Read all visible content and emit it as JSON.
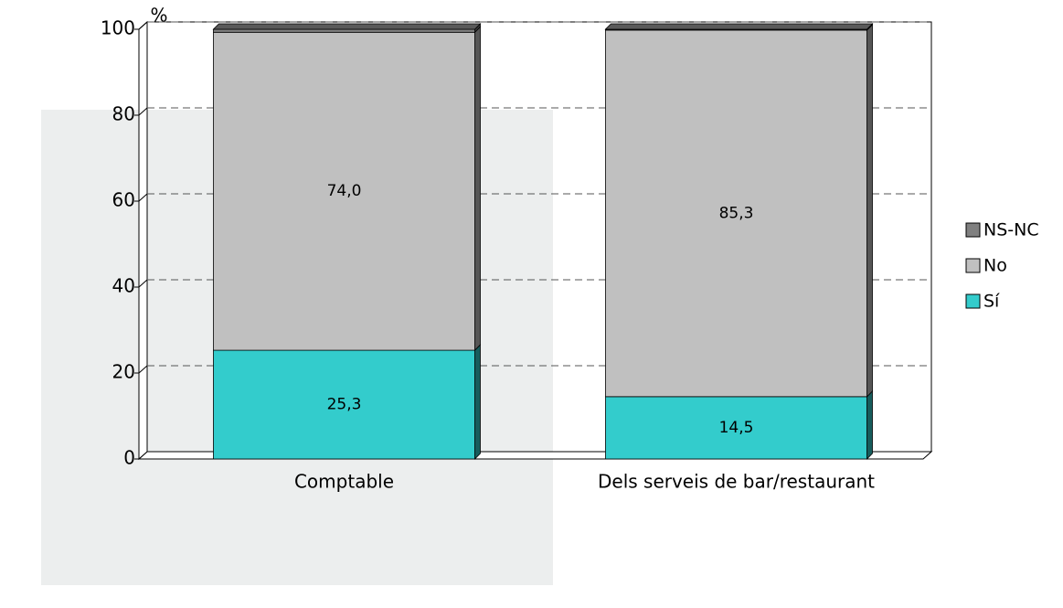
{
  "chart_data": {
    "type": "stacked-bar",
    "y_label": "%",
    "categories": [
      "Comptable",
      "Dels serveis de bar/restaurant"
    ],
    "series": [
      {
        "name": "Sí",
        "color": "#33cccc",
        "values": [
          25.3,
          14.5
        ],
        "value_labels": [
          "25,3",
          "14,5"
        ]
      },
      {
        "name": "No",
        "color": "#c0c0c0",
        "values": [
          74.0,
          85.3
        ],
        "value_labels": [
          "74,0",
          "85,3"
        ]
      },
      {
        "name": "NS-NC",
        "color": "#808080",
        "values": [
          0.7,
          0.2
        ]
      }
    ],
    "ylim": [
      0,
      100
    ],
    "yticks": [
      0,
      20,
      40,
      60,
      80,
      100
    ],
    "grid": true
  }
}
